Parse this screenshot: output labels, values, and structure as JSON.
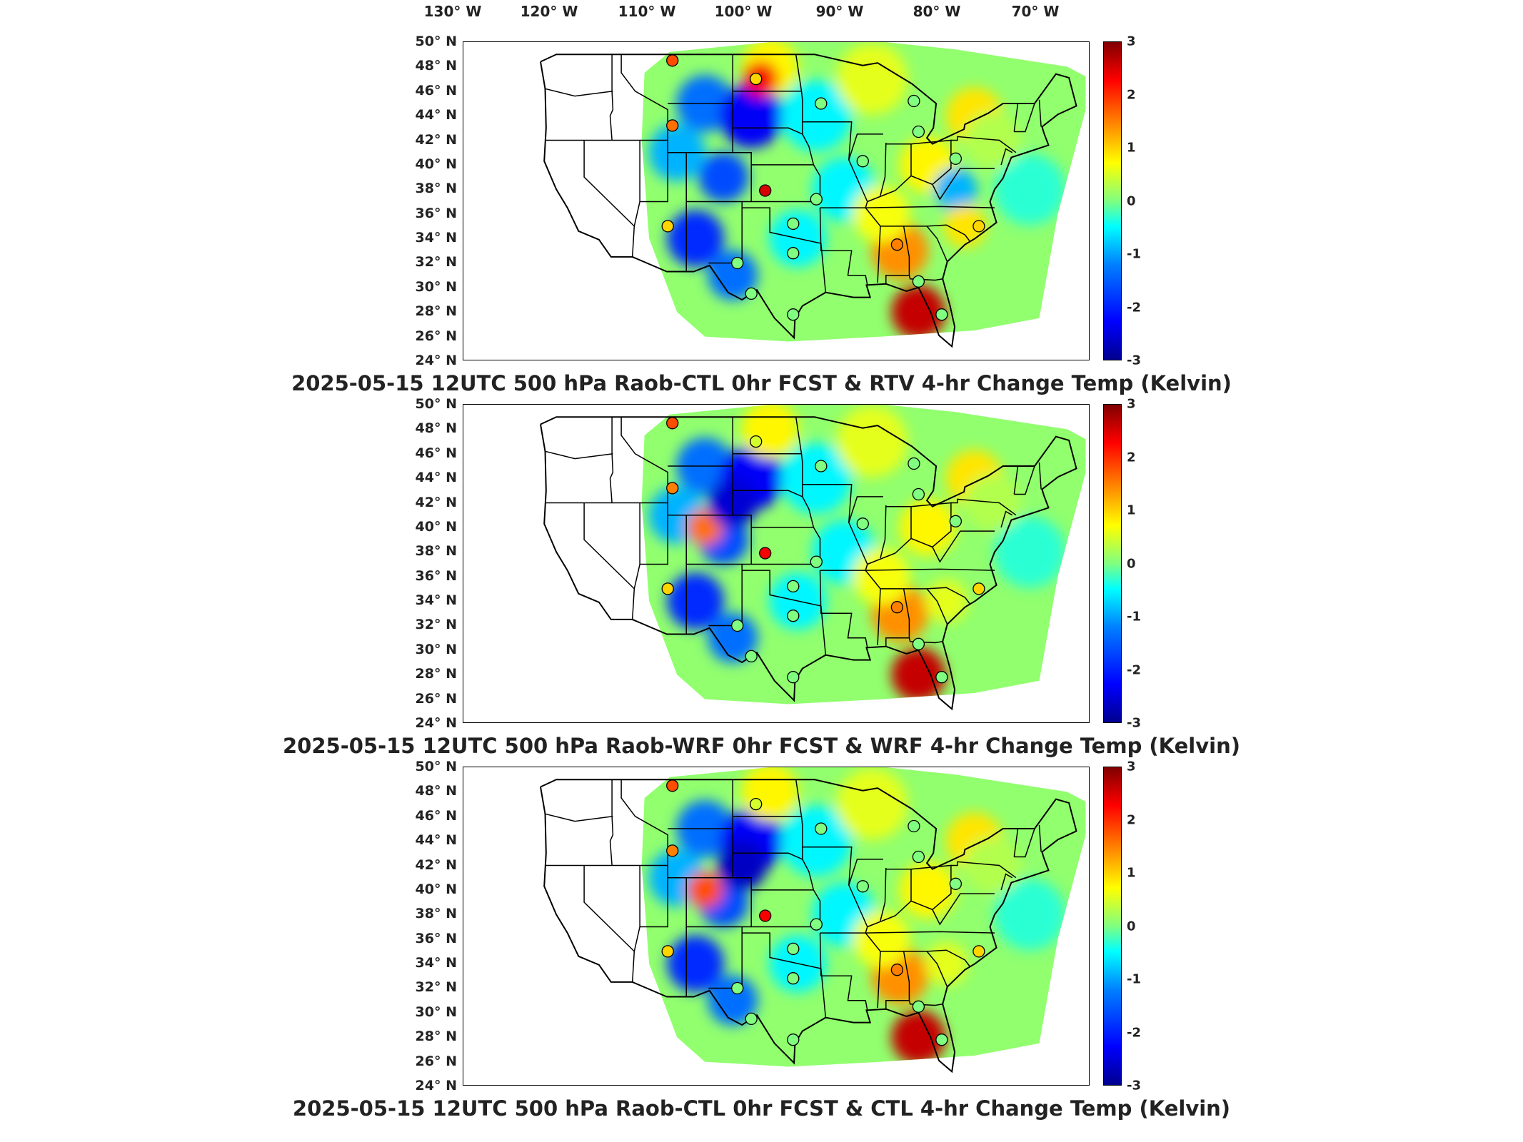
{
  "longitude_labels": [
    "130° W",
    "120° W",
    "110° W",
    "100° W",
    "90° W",
    "80° W",
    "70° W"
  ],
  "latitude_labels": [
    "50° N",
    "48° N",
    "46° N",
    "44° N",
    "42° N",
    "40° N",
    "38° N",
    "36° N",
    "34° N",
    "32° N",
    "30° N",
    "28° N",
    "26° N",
    "24° N"
  ],
  "colorbar": {
    "ticks": [
      "3",
      "2",
      "1",
      "0",
      "-1",
      "-2",
      "-3"
    ],
    "min": -3,
    "max": 3,
    "colormap": "jet"
  },
  "panels": [
    {
      "title": "2025-05-15 12UTC 500 hPa Raob-CTL 0hr FCST & RTV 4-hr Change Temp (Kelvin)"
    },
    {
      "title": "2025-05-15 12UTC 500 hPa Raob-WRF 0hr FCST & WRF 4-hr Change Temp (Kelvin)"
    },
    {
      "title": "2025-05-15 12UTC 500 hPa Raob-CTL 0hr FCST & CTL 4-hr Change Temp (Kelvin)"
    }
  ],
  "colors": {
    "cold": "#0033cc",
    "neutral": "#66e0a0",
    "warm": "#ff3300",
    "border": "#000000"
  },
  "stations": [
    {
      "lon": -110.5,
      "lat": 48.5,
      "values": [
        1.8,
        1.8,
        1.8
      ]
    },
    {
      "lon": -101.5,
      "lat": 47.0,
      "values": [
        1.0,
        0.5,
        0.5
      ]
    },
    {
      "lon": -110.5,
      "lat": 43.2,
      "values": [
        1.6,
        1.5,
        1.5
      ]
    },
    {
      "lon": -100.5,
      "lat": 37.9,
      "values": [
        2.5,
        2.3,
        2.3
      ]
    },
    {
      "lon": -111.0,
      "lat": 35.0,
      "values": [
        1.0,
        1.0,
        1.0
      ]
    },
    {
      "lon": -94.5,
      "lat": 45.0,
      "values": [
        0.0,
        0.0,
        0.0
      ]
    },
    {
      "lon": -90.0,
      "lat": 40.3,
      "values": [
        0.0,
        0.0,
        0.0
      ]
    },
    {
      "lon": -84.5,
      "lat": 45.2,
      "values": [
        0.0,
        0.0,
        0.0
      ]
    },
    {
      "lon": -84.0,
      "lat": 42.7,
      "values": [
        0.0,
        0.0,
        0.0
      ]
    },
    {
      "lon": -86.3,
      "lat": 33.5,
      "values": [
        1.5,
        1.5,
        1.5
      ]
    },
    {
      "lon": -84.0,
      "lat": 30.5,
      "values": [
        0.0,
        0.0,
        0.0
      ]
    },
    {
      "lon": -97.5,
      "lat": 35.2,
      "values": [
        0.0,
        0.0,
        0.0
      ]
    },
    {
      "lon": -95.0,
      "lat": 37.2,
      "values": [
        0.0,
        0.0,
        0.0
      ]
    },
    {
      "lon": -97.5,
      "lat": 32.8,
      "values": [
        0.0,
        0.0,
        0.0
      ]
    },
    {
      "lon": -103.5,
      "lat": 32.0,
      "values": [
        0.0,
        0.0,
        0.0
      ]
    },
    {
      "lon": -102.0,
      "lat": 29.5,
      "values": [
        0.0,
        0.0,
        0.0
      ]
    },
    {
      "lon": -97.5,
      "lat": 27.8,
      "values": [
        0.0,
        0.0,
        0.0
      ]
    },
    {
      "lon": -77.5,
      "lat": 35.0,
      "values": [
        1.0,
        1.0,
        1.0
      ]
    },
    {
      "lon": -81.5,
      "lat": 27.8,
      "values": [
        0.0,
        0.0,
        0.0
      ]
    },
    {
      "lon": -80.0,
      "lat": 40.5,
      "values": [
        0.0,
        0.0,
        0.0
      ]
    }
  ]
}
